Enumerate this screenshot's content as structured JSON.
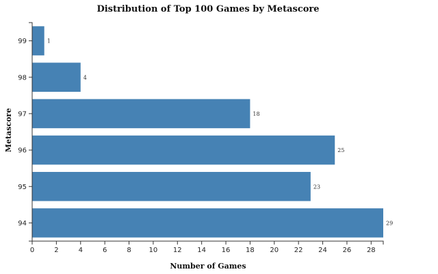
{
  "chart_data": {
    "type": "bar",
    "orientation": "horizontal",
    "title": "Distribution of Top 100 Games by Metascore",
    "xlabel": "Number of Games",
    "ylabel": "Metascore",
    "categories": [
      "99",
      "98",
      "97",
      "96",
      "95",
      "94"
    ],
    "values": [
      1,
      4,
      18,
      25,
      23,
      29
    ],
    "xlim": [
      0,
      29
    ],
    "x_ticks": [
      0,
      2,
      4,
      6,
      8,
      10,
      12,
      14,
      16,
      18,
      20,
      22,
      24,
      26,
      28
    ],
    "bar_color": "#4682b4",
    "grid": false,
    "data_labels": true
  }
}
